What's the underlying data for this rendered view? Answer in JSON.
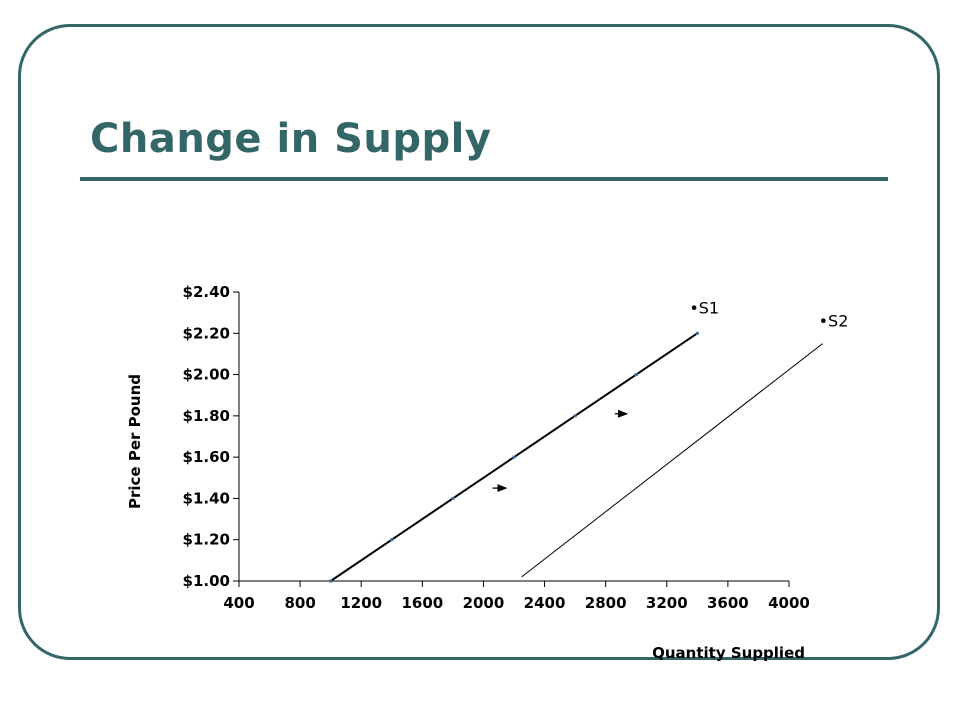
{
  "slide": {
    "title": "Change in Supply",
    "accent": "#336666"
  },
  "chart_data": {
    "type": "line",
    "title": "",
    "xlabel": "Quantity Supplied",
    "ylabel": "Price Per Pound",
    "xlim": [
      400,
      4000
    ],
    "ylim": [
      1.0,
      2.4
    ],
    "x_ticks": [
      400,
      800,
      1200,
      1600,
      2000,
      2400,
      2800,
      3200,
      3600,
      4000
    ],
    "y_ticks": [
      1.0,
      1.2,
      1.4,
      1.6,
      1.8,
      2.0,
      2.2,
      2.4
    ],
    "x_tick_labels": [
      "400",
      "800",
      "1200",
      "1600",
      "2000",
      "2400",
      "2800",
      "3200",
      "3600",
      "4000"
    ],
    "y_tick_labels": [
      "$1.00",
      "$1.20",
      "$1.40",
      "$1.60",
      "$1.80",
      "$2.00",
      "$2.20",
      "$2.40"
    ],
    "grid": false,
    "series": [
      {
        "name": "S1",
        "label_text": "•S1",
        "color": "#000000",
        "points": [
          [
            1000,
            1.0
          ],
          [
            1400,
            1.2
          ],
          [
            1800,
            1.4
          ],
          [
            2200,
            1.6
          ],
          [
            2600,
            1.8
          ],
          [
            3000,
            2.0
          ],
          [
            3400,
            2.2
          ]
        ]
      },
      {
        "name": "S2",
        "label_text": "•S2",
        "color": "#000000",
        "points": [
          [
            2250,
            1.02
          ],
          [
            4220,
            2.15
          ]
        ]
      }
    ],
    "annotations": [
      {
        "type": "arrow",
        "from": [
          2060,
          1.45
        ],
        "to": [
          2150,
          1.45
        ]
      },
      {
        "type": "arrow",
        "from": [
          2860,
          1.81
        ],
        "to": [
          2940,
          1.81
        ]
      }
    ]
  }
}
